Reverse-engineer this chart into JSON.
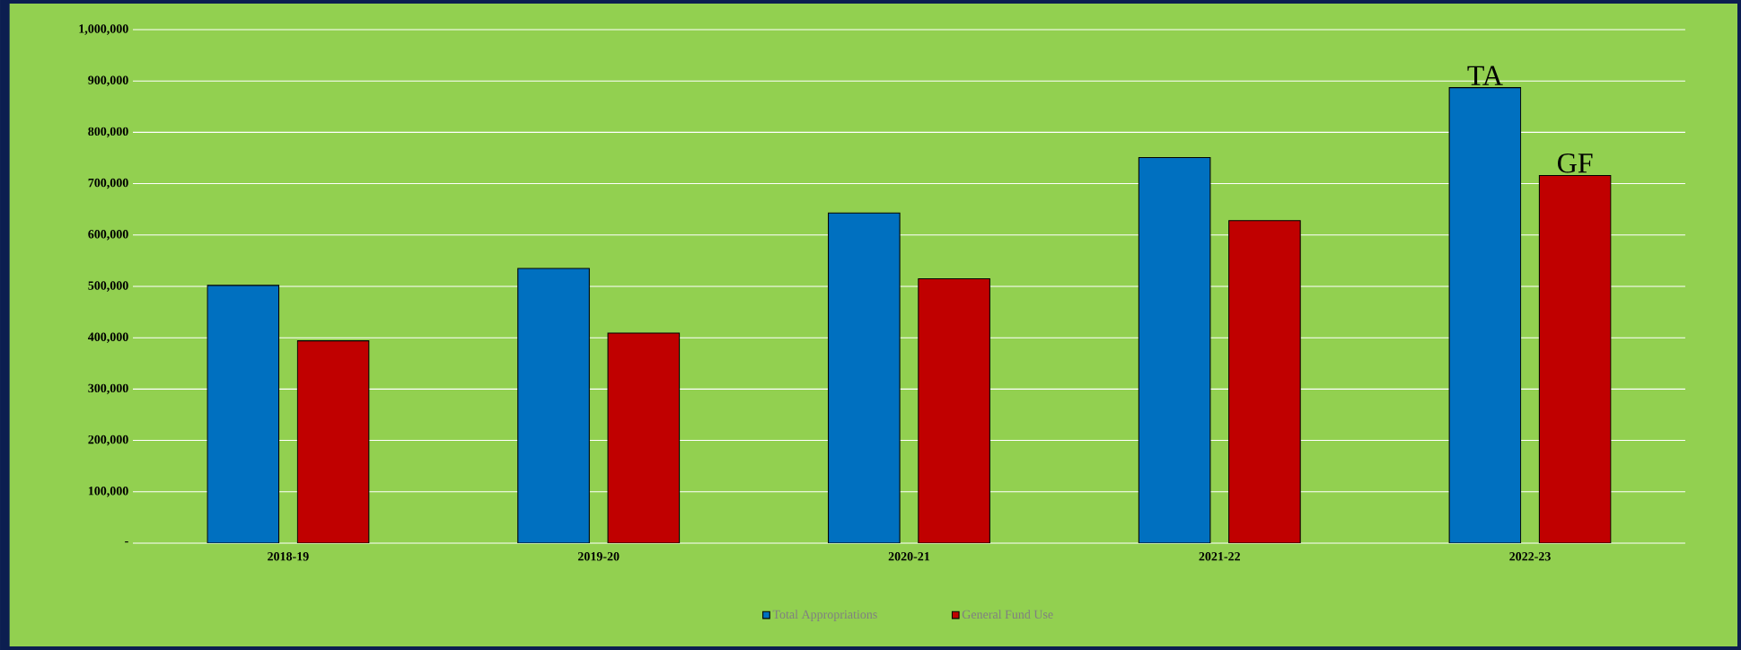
{
  "chart_data": {
    "type": "bar",
    "categories": [
      "2018-19",
      "2019-20",
      "2020-21",
      "2021-22",
      "2022-23"
    ],
    "series": [
      {
        "name": "Total Appropriations",
        "color": "#0070c0",
        "values": [
          502000,
          535000,
          643000,
          751000,
          887000
        ]
      },
      {
        "name": "General Fund Use",
        "color": "#c00000",
        "values": [
          394000,
          409000,
          515000,
          628000,
          716000
        ]
      }
    ],
    "ylim": [
      0,
      1000000
    ],
    "yticks": [
      {
        "value": 0,
        "label": "-"
      },
      {
        "value": 100000,
        "label": "100,000"
      },
      {
        "value": 200000,
        "label": "200,000"
      },
      {
        "value": 300000,
        "label": "300,000"
      },
      {
        "value": 400000,
        "label": "400,000"
      },
      {
        "value": 500000,
        "label": "500,000"
      },
      {
        "value": 600000,
        "label": "600,000"
      },
      {
        "value": 700000,
        "label": "700,000"
      },
      {
        "value": 800000,
        "label": "800,000"
      },
      {
        "value": 900000,
        "label": "900,000"
      },
      {
        "value": 1000000,
        "label": "1,000,000"
      }
    ],
    "annotations": [
      "TA",
      "GF"
    ],
    "grid": "y",
    "legend": "bottom"
  }
}
